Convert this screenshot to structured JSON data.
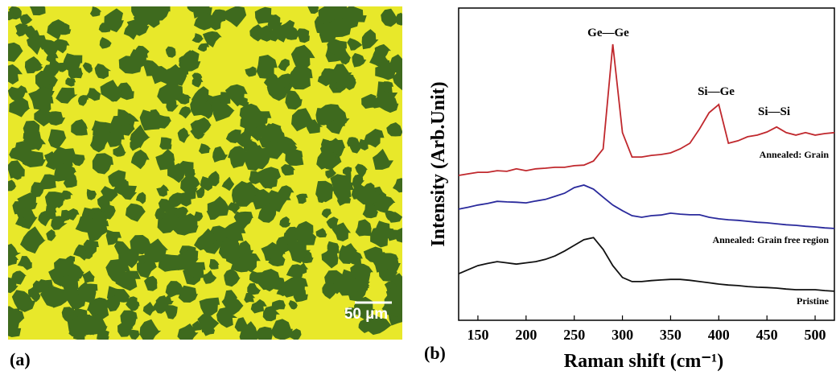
{
  "panel_a": {
    "label": "(a)",
    "scale_bar": "50 µm"
  },
  "panel_b": {
    "label": "(b)"
  },
  "chart_data": {
    "type": "line",
    "x_label": "Raman shift (cm⁻¹)",
    "y_label": "Intensity (Arb.Unit)",
    "annotations": [
      "Ge—Ge",
      "Si—Ge",
      "Si—Si"
    ],
    "x": [
      130,
      140,
      150,
      160,
      170,
      180,
      190,
      200,
      210,
      220,
      230,
      240,
      250,
      260,
      270,
      280,
      290,
      300,
      310,
      320,
      330,
      340,
      350,
      360,
      370,
      380,
      390,
      400,
      410,
      420,
      430,
      440,
      450,
      460,
      470,
      480,
      490,
      500,
      510,
      520
    ],
    "xlim": [
      130,
      520
    ],
    "ylim": [
      0,
      10
    ],
    "xticks": [
      150,
      200,
      250,
      300,
      350,
      400,
      450,
      500
    ],
    "series": [
      {
        "name": "Annealed: Grain",
        "color": "#c0282d",
        "values": [
          4.64,
          4.69,
          4.74,
          4.74,
          4.79,
          4.77,
          4.85,
          4.79,
          4.85,
          4.87,
          4.9,
          4.9,
          4.95,
          4.97,
          5.1,
          5.49,
          8.84,
          6.01,
          5.23,
          5.23,
          5.28,
          5.31,
          5.36,
          5.49,
          5.67,
          6.13,
          6.65,
          6.91,
          5.67,
          5.75,
          5.88,
          5.93,
          6.03,
          6.19,
          6.01,
          5.93,
          6.01,
          5.93,
          5.98,
          6.01
        ]
      },
      {
        "name": "Annealed: Grain free region",
        "color": "#2a2a9c",
        "values": [
          3.56,
          3.62,
          3.69,
          3.74,
          3.81,
          3.79,
          3.78,
          3.76,
          3.82,
          3.87,
          3.97,
          4.07,
          4.25,
          4.33,
          4.2,
          3.94,
          3.69,
          3.51,
          3.35,
          3.3,
          3.35,
          3.37,
          3.43,
          3.4,
          3.38,
          3.38,
          3.3,
          3.25,
          3.22,
          3.2,
          3.17,
          3.14,
          3.12,
          3.09,
          3.06,
          3.04,
          3.01,
          2.99,
          2.96,
          2.94
        ]
      },
      {
        "name": "Pristine",
        "color": "#111111",
        "values": [
          1.49,
          1.62,
          1.75,
          1.82,
          1.88,
          1.84,
          1.8,
          1.84,
          1.88,
          1.95,
          2.06,
          2.22,
          2.4,
          2.58,
          2.65,
          2.27,
          1.75,
          1.37,
          1.24,
          1.24,
          1.27,
          1.29,
          1.31,
          1.31,
          1.28,
          1.24,
          1.2,
          1.16,
          1.13,
          1.11,
          1.08,
          1.06,
          1.05,
          1.03,
          1.0,
          0.98,
          0.98,
          0.98,
          0.95,
          0.93
        ]
      }
    ]
  }
}
